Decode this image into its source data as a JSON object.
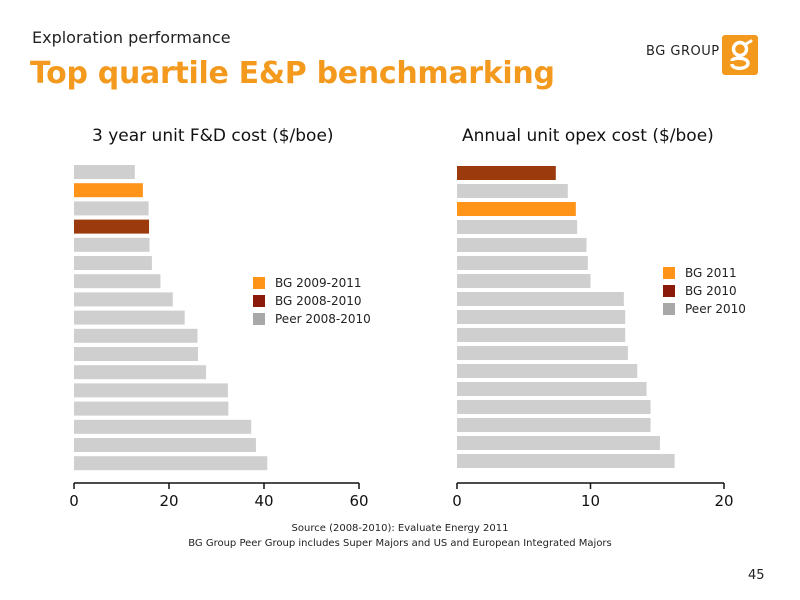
{
  "header": {
    "subtitle": "Exploration performance",
    "title": "Top quartile E&P benchmarking",
    "brand": "BG GROUP",
    "logo_glyph": "g"
  },
  "colors": {
    "accent": "#f39a1e",
    "bg_current": "#ff9419",
    "bg_previous": "#9b3a0c",
    "peer": "#cfcfcf",
    "legend_peer": "#a8a8a8",
    "axis": "#111111"
  },
  "chart_data": [
    {
      "type": "bar",
      "orientation": "horizontal",
      "title": "3 year unit F&D cost ($/boe)",
      "xlim": [
        0,
        60
      ],
      "x_ticks": [
        "0",
        "20",
        "40",
        "60"
      ],
      "legend": [
        "BG 2009-2011",
        "BG 2008-2010",
        "Peer 2008-2010"
      ],
      "legend_position": "right",
      "bars": [
        {
          "value": 12.8,
          "group": "peer"
        },
        {
          "value": 14.5,
          "group": "bg_current"
        },
        {
          "value": 15.7,
          "group": "peer"
        },
        {
          "value": 15.8,
          "group": "bg_previous"
        },
        {
          "value": 15.9,
          "group": "peer"
        },
        {
          "value": 16.4,
          "group": "peer"
        },
        {
          "value": 18.2,
          "group": "peer"
        },
        {
          "value": 20.8,
          "group": "peer"
        },
        {
          "value": 23.3,
          "group": "peer"
        },
        {
          "value": 26.0,
          "group": "peer"
        },
        {
          "value": 26.1,
          "group": "peer"
        },
        {
          "value": 27.8,
          "group": "peer"
        },
        {
          "value": 32.4,
          "group": "peer"
        },
        {
          "value": 32.5,
          "group": "peer"
        },
        {
          "value": 37.3,
          "group": "peer"
        },
        {
          "value": 38.3,
          "group": "peer"
        },
        {
          "value": 40.7,
          "group": "peer"
        }
      ]
    },
    {
      "type": "bar",
      "orientation": "horizontal",
      "title": "Annual unit opex cost ($/boe)",
      "xlim": [
        0,
        20
      ],
      "x_ticks": [
        "0",
        "10",
        "20"
      ],
      "legend": [
        "BG 2011",
        "BG 2010",
        "Peer 2010"
      ],
      "legend_position": "right",
      "bars": [
        {
          "value": 7.4,
          "group": "bg_previous"
        },
        {
          "value": 8.3,
          "group": "peer"
        },
        {
          "value": 8.9,
          "group": "bg_current"
        },
        {
          "value": 9.0,
          "group": "peer"
        },
        {
          "value": 9.7,
          "group": "peer"
        },
        {
          "value": 9.8,
          "group": "peer"
        },
        {
          "value": 10.0,
          "group": "peer"
        },
        {
          "value": 12.5,
          "group": "peer"
        },
        {
          "value": 12.6,
          "group": "peer"
        },
        {
          "value": 12.6,
          "group": "peer"
        },
        {
          "value": 12.8,
          "group": "peer"
        },
        {
          "value": 13.5,
          "group": "peer"
        },
        {
          "value": 14.2,
          "group": "peer"
        },
        {
          "value": 14.5,
          "group": "peer"
        },
        {
          "value": 14.5,
          "group": "peer"
        },
        {
          "value": 15.2,
          "group": "peer"
        },
        {
          "value": 16.3,
          "group": "peer"
        }
      ]
    }
  ],
  "footer": {
    "source_line1": "Source (2008-2010): Evaluate Energy 2011",
    "source_line2": "BG Group Peer Group includes Super Majors and US and European Integrated Majors",
    "page_number": "45"
  }
}
